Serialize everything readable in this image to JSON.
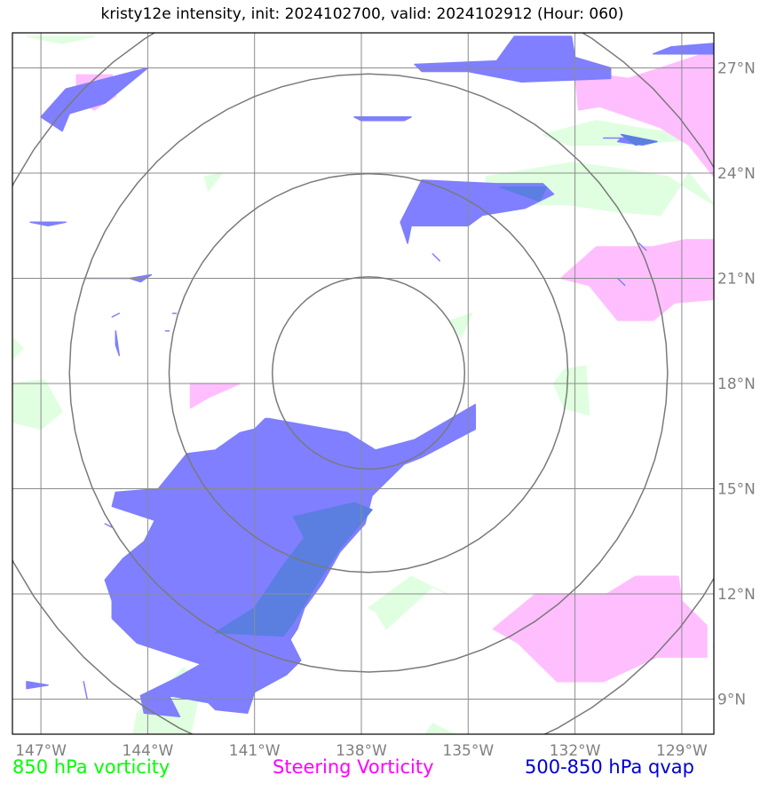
{
  "title": "kristy12e intensity, init: 2024102700, valid: 2024102912 (Hour: 060)",
  "extent": {
    "lon_min": -147.8,
    "lon_max": -128.1,
    "lat_min": 8.0,
    "lat_max": 28.0
  },
  "center": {
    "lon": -137.8,
    "lat": 18.3
  },
  "range_rings_deg": [
    2.7,
    5.6,
    8.4,
    11.3
  ],
  "lon_ticks": [
    {
      "value": -147,
      "label": "147°W"
    },
    {
      "value": -144,
      "label": "144°W"
    },
    {
      "value": -141,
      "label": "141°W"
    },
    {
      "value": -138,
      "label": "138°W"
    },
    {
      "value": -135,
      "label": "135°W"
    },
    {
      "value": -132,
      "label": "132°W"
    },
    {
      "value": -129,
      "label": "129°W"
    }
  ],
  "lat_ticks": [
    {
      "value": 9,
      "label": "9°N"
    },
    {
      "value": 12,
      "label": "12°N"
    },
    {
      "value": 15,
      "label": "15°N"
    },
    {
      "value": 18,
      "label": "18°N"
    },
    {
      "value": 21,
      "label": "21°N"
    },
    {
      "value": 24,
      "label": "24°N"
    },
    {
      "value": 27,
      "label": "27°N"
    }
  ],
  "legend": {
    "vort850": {
      "label": "850 hPa vorticity",
      "color": "#00ff00"
    },
    "steering": {
      "label": "Steering Vorticity",
      "color": "#ff00ff"
    },
    "qvap": {
      "label": "500-850 hPa qvap",
      "color": "#0000cc"
    }
  },
  "fill_colors": {
    "vort850": "#e0ffe0",
    "steering": "#ffbfff",
    "qvap": "#7f7fff",
    "qvap_overlap": "#5a7fe0"
  },
  "regions": {
    "vort850": [
      [
        [
          -147.4,
          27.9
        ],
        [
          -146.4,
          27.7
        ],
        [
          -145.5,
          27.9
        ]
      ],
      [
        [
          -147.8,
          19.3
        ],
        [
          -147.5,
          19.0
        ],
        [
          -147.8,
          18.7
        ]
      ],
      [
        [
          -147.8,
          18.0
        ],
        [
          -146.9,
          18.1
        ],
        [
          -146.4,
          17.2
        ],
        [
          -147.0,
          16.7
        ],
        [
          -147.8,
          16.9
        ]
      ],
      [
        [
          -142.4,
          23.9
        ],
        [
          -141.9,
          24.0
        ],
        [
          -142.3,
          23.5
        ]
      ],
      [
        [
          -132.9,
          25.1
        ],
        [
          -131.4,
          25.5
        ],
        [
          -130.3,
          25.3
        ],
        [
          -128.1,
          25.0
        ],
        [
          -130.8,
          24.8
        ],
        [
          -132.2,
          24.8
        ]
      ],
      [
        [
          -134.5,
          23.9
        ],
        [
          -132.1,
          24.3
        ],
        [
          -130.6,
          24.1
        ],
        [
          -129.4,
          23.9
        ],
        [
          -128.1,
          23.1
        ],
        [
          -128.8,
          24.0
        ],
        [
          -129.6,
          22.8
        ],
        [
          -130.8,
          22.9
        ],
        [
          -132.2,
          23.1
        ],
        [
          -133.6,
          23.1
        ],
        [
          -134.5,
          23.3
        ]
      ],
      [
        [
          -135.5,
          19.8
        ],
        [
          -134.9,
          20.0
        ],
        [
          -135.2,
          19.3
        ]
      ],
      [
        [
          -132.3,
          18.4
        ],
        [
          -131.7,
          18.5
        ],
        [
          -131.6,
          17.1
        ],
        [
          -132.3,
          17.3
        ],
        [
          -132.6,
          18.0
        ]
      ],
      [
        [
          -137.8,
          11.6
        ],
        [
          -136.6,
          12.5
        ],
        [
          -135.6,
          12.0
        ],
        [
          -136.0,
          12.2
        ],
        [
          -137.3,
          11.0
        ],
        [
          -137.6,
          11.5
        ]
      ],
      [
        [
          -143.9,
          8.9
        ],
        [
          -143.0,
          9.9
        ],
        [
          -142.5,
          9.4
        ],
        [
          -142.8,
          8.0
        ],
        [
          -144.4,
          8.0
        ],
        [
          -144.3,
          8.6
        ]
      ],
      [
        [
          -136.0,
          8.3
        ],
        [
          -135.4,
          8.0
        ],
        [
          -136.2,
          8.0
        ]
      ]
    ],
    "steering": [
      [
        [
          -146.0,
          26.8
        ],
        [
          -145.0,
          26.8
        ],
        [
          -144.9,
          26.2
        ],
        [
          -145.5,
          25.8
        ],
        [
          -146.0,
          26.1
        ]
      ],
      [
        [
          -130.5,
          26.7
        ],
        [
          -128.1,
          27.5
        ],
        [
          -128.1,
          23.9
        ],
        [
          -128.8,
          24.8
        ],
        [
          -129.6,
          25.3
        ],
        [
          -131.3,
          25.9
        ],
        [
          -131.9,
          25.8
        ],
        [
          -132.0,
          26.9
        ]
      ],
      [
        [
          -131.4,
          21.9
        ],
        [
          -129.8,
          21.9
        ],
        [
          -128.9,
          22.1
        ],
        [
          -128.1,
          22.1
        ],
        [
          -128.1,
          20.4
        ],
        [
          -129.2,
          20.3
        ],
        [
          -129.8,
          19.8
        ],
        [
          -130.8,
          19.8
        ],
        [
          -131.6,
          20.8
        ],
        [
          -132.4,
          21.0
        ]
      ],
      [
        [
          -142.8,
          18.0
        ],
        [
          -141.4,
          18.0
        ],
        [
          -142.3,
          17.6
        ],
        [
          -142.8,
          17.3
        ]
      ],
      [
        [
          -133.1,
          12.0
        ],
        [
          -131.1,
          12.0
        ],
        [
          -130.3,
          12.5
        ],
        [
          -129.1,
          12.5
        ],
        [
          -129.0,
          11.8
        ],
        [
          -128.3,
          11.1
        ],
        [
          -128.3,
          10.2
        ],
        [
          -129.7,
          10.2
        ],
        [
          -131.2,
          9.5
        ],
        [
          -132.5,
          9.5
        ],
        [
          -133.6,
          10.6
        ],
        [
          -134.3,
          11.0
        ]
      ]
    ],
    "qvap": [
      [
        [
          -144.0,
          27.0
        ],
        [
          -145.2,
          26.0
        ],
        [
          -146.2,
          25.7
        ],
        [
          -146.4,
          25.2
        ],
        [
          -147.0,
          25.6
        ],
        [
          -146.3,
          26.4
        ]
      ],
      [
        [
          -136.5,
          27.1
        ],
        [
          -134.2,
          27.2
        ],
        [
          -133.7,
          27.9
        ],
        [
          -132.1,
          27.9
        ],
        [
          -132.0,
          27.3
        ],
        [
          -131.0,
          27.0
        ],
        [
          -131.0,
          26.7
        ],
        [
          -133.5,
          26.6
        ],
        [
          -135.0,
          26.9
        ],
        [
          -136.3,
          26.9
        ]
      ],
      [
        [
          -129.8,
          27.4
        ],
        [
          -128.1,
          27.4
        ],
        [
          -128.1,
          27.7
        ],
        [
          -129.3,
          27.6
        ]
      ],
      [
        [
          -138.2,
          25.6
        ],
        [
          -136.6,
          25.6
        ],
        [
          -136.8,
          25.5
        ],
        [
          -138.0,
          25.5
        ]
      ],
      [
        [
          -136.3,
          23.8
        ],
        [
          -134.2,
          23.7
        ],
        [
          -132.9,
          23.7
        ],
        [
          -132.6,
          23.4
        ],
        [
          -133.4,
          23.0
        ],
        [
          -134.6,
          22.8
        ],
        [
          -135.0,
          22.5
        ],
        [
          -136.6,
          22.5
        ],
        [
          -136.7,
          22.0
        ],
        [
          -136.9,
          22.6
        ]
      ],
      [
        [
          -130.7,
          25.0
        ],
        [
          -129.7,
          24.9
        ],
        [
          -130.1,
          24.8
        ],
        [
          -130.8,
          24.9
        ]
      ],
      [
        [
          -147.3,
          22.6
        ],
        [
          -146.3,
          22.6
        ],
        [
          -146.8,
          22.5
        ]
      ],
      [
        [
          -144.5,
          21.0
        ],
        [
          -143.9,
          21.1
        ],
        [
          -144.2,
          20.9
        ]
      ],
      [
        [
          -145.8,
          21.0
        ],
        [
          -144.5,
          21.0
        ]
      ],
      [
        [
          -143.3,
          20.0
        ],
        [
          -143.2,
          20.0
        ]
      ],
      [
        [
          -143.5,
          19.5
        ],
        [
          -143.4,
          19.5
        ]
      ],
      [
        [
          -145.0,
          19.9
        ],
        [
          -144.8,
          20.0
        ]
      ],
      [
        [
          -144.9,
          19.5
        ],
        [
          -144.8,
          18.8
        ],
        [
          -144.9,
          19.1
        ]
      ],
      [
        [
          -140.6,
          17.0
        ],
        [
          -138.4,
          16.6
        ],
        [
          -137.6,
          16.1
        ],
        [
          -136.5,
          16.4
        ],
        [
          -134.8,
          17.4
        ],
        [
          -134.8,
          16.7
        ],
        [
          -136.3,
          15.9
        ],
        [
          -136.8,
          15.7
        ],
        [
          -137.7,
          14.8
        ],
        [
          -137.9,
          14.0
        ],
        [
          -138.6,
          13.2
        ],
        [
          -139.1,
          12.3
        ],
        [
          -139.6,
          11.6
        ],
        [
          -139.8,
          11.0
        ],
        [
          -140.0,
          10.7
        ],
        [
          -139.7,
          10.1
        ],
        [
          -140.1,
          9.7
        ],
        [
          -141.0,
          9.2
        ],
        [
          -141.2,
          8.6
        ],
        [
          -142.1,
          8.7
        ],
        [
          -142.3,
          8.9
        ],
        [
          -143.4,
          9.1
        ],
        [
          -143.1,
          8.5
        ],
        [
          -144.1,
          8.6
        ],
        [
          -144.2,
          9.1
        ],
        [
          -143.2,
          9.6
        ],
        [
          -142.5,
          10.0
        ],
        [
          -144.3,
          10.6
        ],
        [
          -145.0,
          11.3
        ],
        [
          -145.0,
          11.8
        ],
        [
          -145.2,
          12.4
        ],
        [
          -144.7,
          13.0
        ],
        [
          -144.1,
          13.5
        ],
        [
          -143.8,
          14.1
        ],
        [
          -145.0,
          14.5
        ],
        [
          -144.9,
          14.9
        ],
        [
          -143.7,
          15.0
        ],
        [
          -142.9,
          16.0
        ],
        [
          -142.1,
          16.1
        ],
        [
          -141.4,
          16.6
        ],
        [
          -141.0,
          16.7
        ],
        [
          -140.7,
          17.0
        ]
      ],
      [
        [
          -145.2,
          14.0
        ],
        [
          -145.0,
          13.9
        ]
      ],
      [
        [
          -147.4,
          9.5
        ],
        [
          -146.8,
          9.4
        ],
        [
          -147.4,
          9.3
        ]
      ],
      [
        [
          -145.8,
          9.5
        ],
        [
          -145.7,
          9.0
        ],
        [
          -145.8,
          9.5
        ]
      ],
      [
        [
          -128.1,
          10.5
        ],
        [
          -128.0,
          10.4
        ]
      ],
      [
        [
          -130.2,
          22.0
        ],
        [
          -130.0,
          21.8
        ]
      ],
      [
        [
          -130.8,
          21.0
        ],
        [
          -130.6,
          20.8
        ]
      ],
      [
        [
          -131.2,
          25.0
        ],
        [
          -130.6,
          25.0
        ]
      ],
      [
        [
          -136.0,
          21.7
        ],
        [
          -135.8,
          21.5
        ]
      ]
    ],
    "qvap_overlap": [
      [
        [
          -138.2,
          14.6
        ],
        [
          -137.7,
          14.4
        ],
        [
          -138.6,
          13.3
        ],
        [
          -139.3,
          12.2
        ],
        [
          -139.9,
          11.2
        ],
        [
          -140.2,
          10.8
        ],
        [
          -142.1,
          10.9
        ],
        [
          -141.0,
          11.6
        ],
        [
          -140.2,
          12.8
        ],
        [
          -139.6,
          13.6
        ],
        [
          -139.9,
          14.2
        ]
      ],
      [
        [
          -134.1,
          23.6
        ],
        [
          -132.8,
          23.6
        ],
        [
          -133.0,
          23.2
        ]
      ],
      [
        [
          -130.7,
          25.1
        ],
        [
          -129.7,
          24.9
        ],
        [
          -130.3,
          24.8
        ]
      ]
    ]
  }
}
